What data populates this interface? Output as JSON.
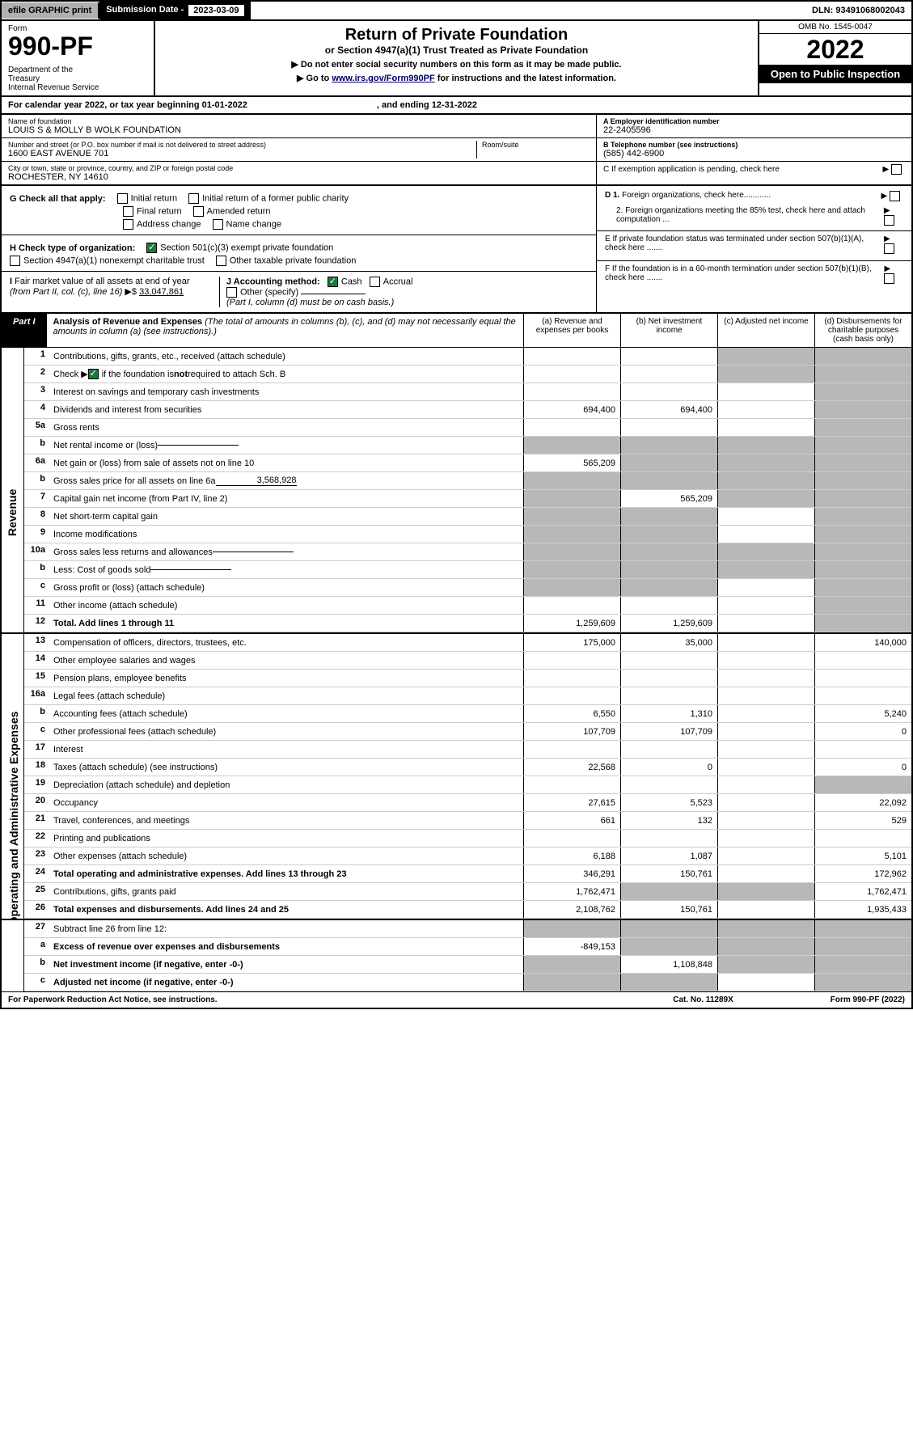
{
  "topbar": {
    "efile": "efile GRAPHIC print",
    "subdate_label": "Submission Date - ",
    "subdate": "2023-03-09",
    "dln": "DLN: 93491068002043"
  },
  "header": {
    "form": "Form",
    "form_no": "990-PF",
    "dept": "Department of the Treasury\nInternal Revenue Service",
    "title": "Return of Private Foundation",
    "subtitle": "or Section 4947(a)(1) Trust Treated as Private Foundation",
    "note1": "▶ Do not enter social security numbers on this form as it may be made public.",
    "note2_pre": "▶ Go to ",
    "note2_link": "www.irs.gov/Form990PF",
    "note2_post": " for instructions and the latest information.",
    "omb": "OMB No. 1545-0047",
    "year": "2022",
    "inspect": "Open to Public Inspection"
  },
  "calendar": {
    "text": "For calendar year 2022, or tax year beginning 01-01-2022",
    "ending": ", and ending 12-31-2022"
  },
  "info": {
    "name_label": "Name of foundation",
    "name": "LOUIS S & MOLLY B WOLK FOUNDATION",
    "addr_label": "Number and street (or P.O. box number if mail is not delivered to street address)",
    "addr": "1600 EAST AVENUE 701",
    "room_label": "Room/suite",
    "city_label": "City or town, state or province, country, and ZIP or foreign postal code",
    "city": "ROCHESTER, NY  14610",
    "ein_label": "A Employer identification number",
    "ein": "22-2405596",
    "phone_label": "B Telephone number (see instructions)",
    "phone": "(585) 442-6900",
    "c_label": "C If exemption application is pending, check here",
    "d1": "D 1. Foreign organizations, check here............",
    "d2": "2. Foreign organizations meeting the 85% test, check here and attach computation ...",
    "e": "E  If private foundation status was terminated under section 507(b)(1)(A), check here .......",
    "f": "F  If the foundation is in a 60-month termination under section 507(b)(1)(B), check here .......",
    "g_label": "G Check all that apply:",
    "g_items": [
      "Initial return",
      "Initial return of a former public charity",
      "Final return",
      "Amended return",
      "Address change",
      "Name change"
    ],
    "h_label": "H Check type of organization:",
    "h_items": [
      "Section 501(c)(3) exempt private foundation",
      "Section 4947(a)(1) nonexempt charitable trust",
      "Other taxable private foundation"
    ],
    "i_label": "I Fair market value of all assets at end of year (from Part II, col. (c), line 16)",
    "i_value": "33,047,861",
    "j_label": "J Accounting method:",
    "j_cash": "Cash",
    "j_accrual": "Accrual",
    "j_other": "Other (specify)",
    "j_note": "(Part I, column (d) must be on cash basis.)"
  },
  "part1": {
    "tag": "Part I",
    "title": "Analysis of Revenue and Expenses",
    "title_note": "(The total of amounts in columns (b), (c), and (d) may not necessarily equal the amounts in column (a) (see instructions).)",
    "cols": [
      "(a)   Revenue and expenses per books",
      "(b)   Net investment income",
      "(c)   Adjusted net income",
      "(d)   Disbursements for charitable purposes (cash basis only)"
    ]
  },
  "side_labels": {
    "revenue": "Revenue",
    "expenses": "Operating and Administrative Expenses"
  },
  "rows": [
    {
      "no": "1",
      "desc": "Contributions, gifts, grants, etc., received (attach schedule)",
      "a": "",
      "b": "",
      "c": "",
      "d": "",
      "cs": "s",
      "ds": "s"
    },
    {
      "no": "2",
      "desc": "Check ▶ ☑ if the foundation is not required to attach Sch. B",
      "a": "",
      "b": "",
      "c": "",
      "d": "",
      "cs": "s",
      "ds": "s",
      "html": true
    },
    {
      "no": "3",
      "desc": "Interest on savings and temporary cash investments",
      "a": "",
      "b": "",
      "c": "",
      "d": "",
      "ds": "s"
    },
    {
      "no": "4",
      "desc": "Dividends and interest from securities",
      "a": "694,400",
      "b": "694,400",
      "c": "",
      "d": "",
      "ds": "s"
    },
    {
      "no": "5a",
      "desc": "Gross rents",
      "a": "",
      "b": "",
      "c": "",
      "d": "",
      "ds": "s"
    },
    {
      "no": "b",
      "desc": "Net rental income or (loss)",
      "a": "",
      "b": "",
      "c": "",
      "d": "",
      "as": "s",
      "bs": "s",
      "cs": "s",
      "ds": "s",
      "inline": true
    },
    {
      "no": "6a",
      "desc": "Net gain or (loss) from sale of assets not on line 10",
      "a": "565,209",
      "b": "",
      "c": "",
      "d": "",
      "bs": "s",
      "cs": "s",
      "ds": "s"
    },
    {
      "no": "b",
      "desc": "Gross sales price for all assets on line 6a",
      "a": "",
      "b": "",
      "c": "",
      "d": "",
      "as": "s",
      "bs": "s",
      "cs": "s",
      "ds": "s",
      "inline": true,
      "inline_val": "3,568,928"
    },
    {
      "no": "7",
      "desc": "Capital gain net income (from Part IV, line 2)",
      "a": "",
      "b": "565,209",
      "c": "",
      "d": "",
      "as": "s",
      "cs": "s",
      "ds": "s"
    },
    {
      "no": "8",
      "desc": "Net short-term capital gain",
      "a": "",
      "b": "",
      "c": "",
      "d": "",
      "as": "s",
      "bs": "s",
      "ds": "s"
    },
    {
      "no": "9",
      "desc": "Income modifications",
      "a": "",
      "b": "",
      "c": "",
      "d": "",
      "as": "s",
      "bs": "s",
      "ds": "s"
    },
    {
      "no": "10a",
      "desc": "Gross sales less returns and allowances",
      "a": "",
      "b": "",
      "c": "",
      "d": "",
      "as": "s",
      "bs": "s",
      "cs": "s",
      "ds": "s",
      "inline": true
    },
    {
      "no": "b",
      "desc": "Less: Cost of goods sold",
      "a": "",
      "b": "",
      "c": "",
      "d": "",
      "as": "s",
      "bs": "s",
      "cs": "s",
      "ds": "s",
      "inline": true
    },
    {
      "no": "c",
      "desc": "Gross profit or (loss) (attach schedule)",
      "a": "",
      "b": "",
      "c": "",
      "d": "",
      "as": "s",
      "bs": "s",
      "ds": "s"
    },
    {
      "no": "11",
      "desc": "Other income (attach schedule)",
      "a": "",
      "b": "",
      "c": "",
      "d": "",
      "ds": "s"
    },
    {
      "no": "12",
      "desc": "Total. Add lines 1 through 11",
      "a": "1,259,609",
      "b": "1,259,609",
      "c": "",
      "d": "",
      "ds": "s",
      "bold": true
    }
  ],
  "expense_rows": [
    {
      "no": "13",
      "desc": "Compensation of officers, directors, trustees, etc.",
      "a": "175,000",
      "b": "35,000",
      "c": "",
      "d": "140,000"
    },
    {
      "no": "14",
      "desc": "Other employee salaries and wages",
      "a": "",
      "b": "",
      "c": "",
      "d": ""
    },
    {
      "no": "15",
      "desc": "Pension plans, employee benefits",
      "a": "",
      "b": "",
      "c": "",
      "d": ""
    },
    {
      "no": "16a",
      "desc": "Legal fees (attach schedule)",
      "a": "",
      "b": "",
      "c": "",
      "d": ""
    },
    {
      "no": "b",
      "desc": "Accounting fees (attach schedule)",
      "a": "6,550",
      "b": "1,310",
      "c": "",
      "d": "5,240"
    },
    {
      "no": "c",
      "desc": "Other professional fees (attach schedule)",
      "a": "107,709",
      "b": "107,709",
      "c": "",
      "d": "0"
    },
    {
      "no": "17",
      "desc": "Interest",
      "a": "",
      "b": "",
      "c": "",
      "d": ""
    },
    {
      "no": "18",
      "desc": "Taxes (attach schedule) (see instructions)",
      "a": "22,568",
      "b": "0",
      "c": "",
      "d": "0"
    },
    {
      "no": "19",
      "desc": "Depreciation (attach schedule) and depletion",
      "a": "",
      "b": "",
      "c": "",
      "d": "",
      "ds": "s"
    },
    {
      "no": "20",
      "desc": "Occupancy",
      "a": "27,615",
      "b": "5,523",
      "c": "",
      "d": "22,092"
    },
    {
      "no": "21",
      "desc": "Travel, conferences, and meetings",
      "a": "661",
      "b": "132",
      "c": "",
      "d": "529"
    },
    {
      "no": "22",
      "desc": "Printing and publications",
      "a": "",
      "b": "",
      "c": "",
      "d": ""
    },
    {
      "no": "23",
      "desc": "Other expenses (attach schedule)",
      "a": "6,188",
      "b": "1,087",
      "c": "",
      "d": "5,101"
    },
    {
      "no": "24",
      "desc": "Total operating and administrative expenses. Add lines 13 through 23",
      "a": "346,291",
      "b": "150,761",
      "c": "",
      "d": "172,962",
      "bold": true
    },
    {
      "no": "25",
      "desc": "Contributions, gifts, grants paid",
      "a": "1,762,471",
      "b": "",
      "c": "",
      "d": "1,762,471",
      "bs": "s",
      "cs": "s"
    },
    {
      "no": "26",
      "desc": "Total expenses and disbursements. Add lines 24 and 25",
      "a": "2,108,762",
      "b": "150,761",
      "c": "",
      "d": "1,935,433",
      "bold": true
    }
  ],
  "final_rows": [
    {
      "no": "27",
      "desc": "Subtract line 26 from line 12:",
      "a": "",
      "b": "",
      "c": "",
      "d": "",
      "as": "s",
      "bs": "s",
      "cs": "s",
      "ds": "s"
    },
    {
      "no": "a",
      "desc": "Excess of revenue over expenses and disbursements",
      "a": "-849,153",
      "b": "",
      "c": "",
      "d": "",
      "bs": "s",
      "cs": "s",
      "ds": "s",
      "bold": true
    },
    {
      "no": "b",
      "desc": "Net investment income (if negative, enter -0-)",
      "a": "",
      "b": "1,108,848",
      "c": "",
      "d": "",
      "as": "s",
      "cs": "s",
      "ds": "s",
      "bold": true
    },
    {
      "no": "c",
      "desc": "Adjusted net income (if negative, enter -0-)",
      "a": "",
      "b": "",
      "c": "",
      "d": "",
      "as": "s",
      "bs": "s",
      "ds": "s",
      "bold": true
    }
  ],
  "footer": {
    "left": "For Paperwork Reduction Act Notice, see instructions.",
    "mid": "Cat. No. 11289X",
    "right": "Form 990-PF (2022)"
  }
}
